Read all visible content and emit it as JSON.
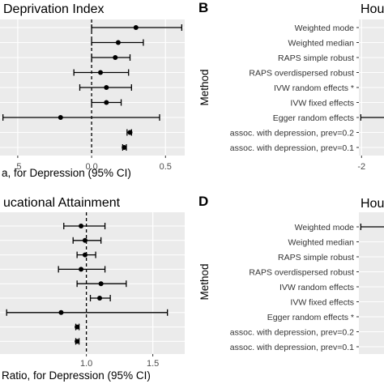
{
  "figure": {
    "colors": {
      "panel_background": "#ebebeb",
      "gridline": "#ffffff",
      "marks": "#000000",
      "reference_line": "#000000"
    }
  },
  "chart_data": [
    {
      "id": "A",
      "type": "forest",
      "title": "Deprivation Index",
      "xlabel": "a, for Depression (95% CI)",
      "xlim": [
        -0.5,
        0.68
      ],
      "xticks": [
        {
          "v": -0.5,
          "label": ".5"
        },
        {
          "v": 0.0,
          "label": "0.0"
        },
        {
          "v": 0.5,
          "label": "0.5"
        }
      ],
      "reference_line": 0,
      "rows": [
        {
          "est": 0.3,
          "lo": 0.0,
          "hi": 0.61
        },
        {
          "est": 0.18,
          "lo": 0.0,
          "hi": 0.35
        },
        {
          "est": 0.16,
          "lo": 0.0,
          "hi": 0.26
        },
        {
          "est": 0.06,
          "lo": -0.12,
          "hi": 0.25
        },
        {
          "est": 0.1,
          "lo": -0.08,
          "hi": 0.27
        },
        {
          "est": 0.1,
          "lo": 0.0,
          "hi": 0.2
        },
        {
          "est": -0.21,
          "lo": -0.6,
          "hi": 0.46
        },
        {
          "est": 0.26,
          "lo": 0.24,
          "hi": 0.27
        },
        {
          "est": 0.22,
          "lo": 0.21,
          "hi": 0.235
        }
      ]
    },
    {
      "id": "B",
      "type": "forest",
      "letter": "B",
      "title": "Hou",
      "ylabel": "Method",
      "xlim": [
        -2.1,
        0.3
      ],
      "xticks": [
        {
          "v": -2,
          "label": "-2"
        }
      ],
      "categories": [
        "Weighted mode",
        "Weighted median",
        "RAPS simple robust",
        "RAPS overdispersed robust",
        "IVW random effects *",
        "IVW fixed effects",
        "Egger random effects",
        "assoc. with depression, prev=0.2",
        "assoc. with depression, prev=0.1"
      ],
      "rows": [
        null,
        null,
        null,
        null,
        null,
        null,
        {
          "est": null,
          "lo": -2.05,
          "hi": 0.3
        },
        null,
        null
      ]
    },
    {
      "id": "C",
      "type": "forest",
      "title": "ucational Attainment",
      "xlabel": "Ratio, for Depression (95% CI)",
      "xlim": [
        0.57,
        1.72
      ],
      "xticks": [
        {
          "v": 1.0,
          "label": "1.0"
        },
        {
          "v": 1.5,
          "label": "1.5"
        }
      ],
      "reference_line": 1.0,
      "rows": [
        {
          "est": 0.96,
          "lo": 0.83,
          "hi": 1.14
        },
        {
          "est": 0.99,
          "lo": 0.9,
          "hi": 1.11
        },
        {
          "est": 0.99,
          "lo": 0.93,
          "hi": 1.07
        },
        {
          "est": 0.96,
          "lo": 0.79,
          "hi": 1.14
        },
        {
          "est": 1.11,
          "lo": 0.93,
          "hi": 1.3
        },
        {
          "est": 1.1,
          "lo": 1.03,
          "hi": 1.18
        },
        {
          "est": 0.81,
          "lo": 0.4,
          "hi": 1.61
        },
        {
          "est": 0.93,
          "lo": 0.92,
          "hi": 0.945
        },
        {
          "est": 0.93,
          "lo": 0.92,
          "hi": 0.945
        }
      ]
    },
    {
      "id": "D",
      "type": "forest",
      "letter": "D",
      "title": "Hou",
      "ylabel": "Method",
      "xlim": [
        -2.1,
        0.3
      ],
      "categories": [
        "Weighted mode",
        "Weighted median",
        "RAPS simple robust",
        "RAPS overdispersed robust",
        "IVW random effects",
        "IVW fixed effects",
        "Egger random effects *",
        "assoc. with depression, prev=0.2",
        "assoc. with depression, prev=0.1"
      ],
      "rows": [
        {
          "est": null,
          "lo": -2.05,
          "hi": 0.3
        },
        null,
        null,
        null,
        null,
        null,
        null,
        null,
        null
      ]
    }
  ]
}
